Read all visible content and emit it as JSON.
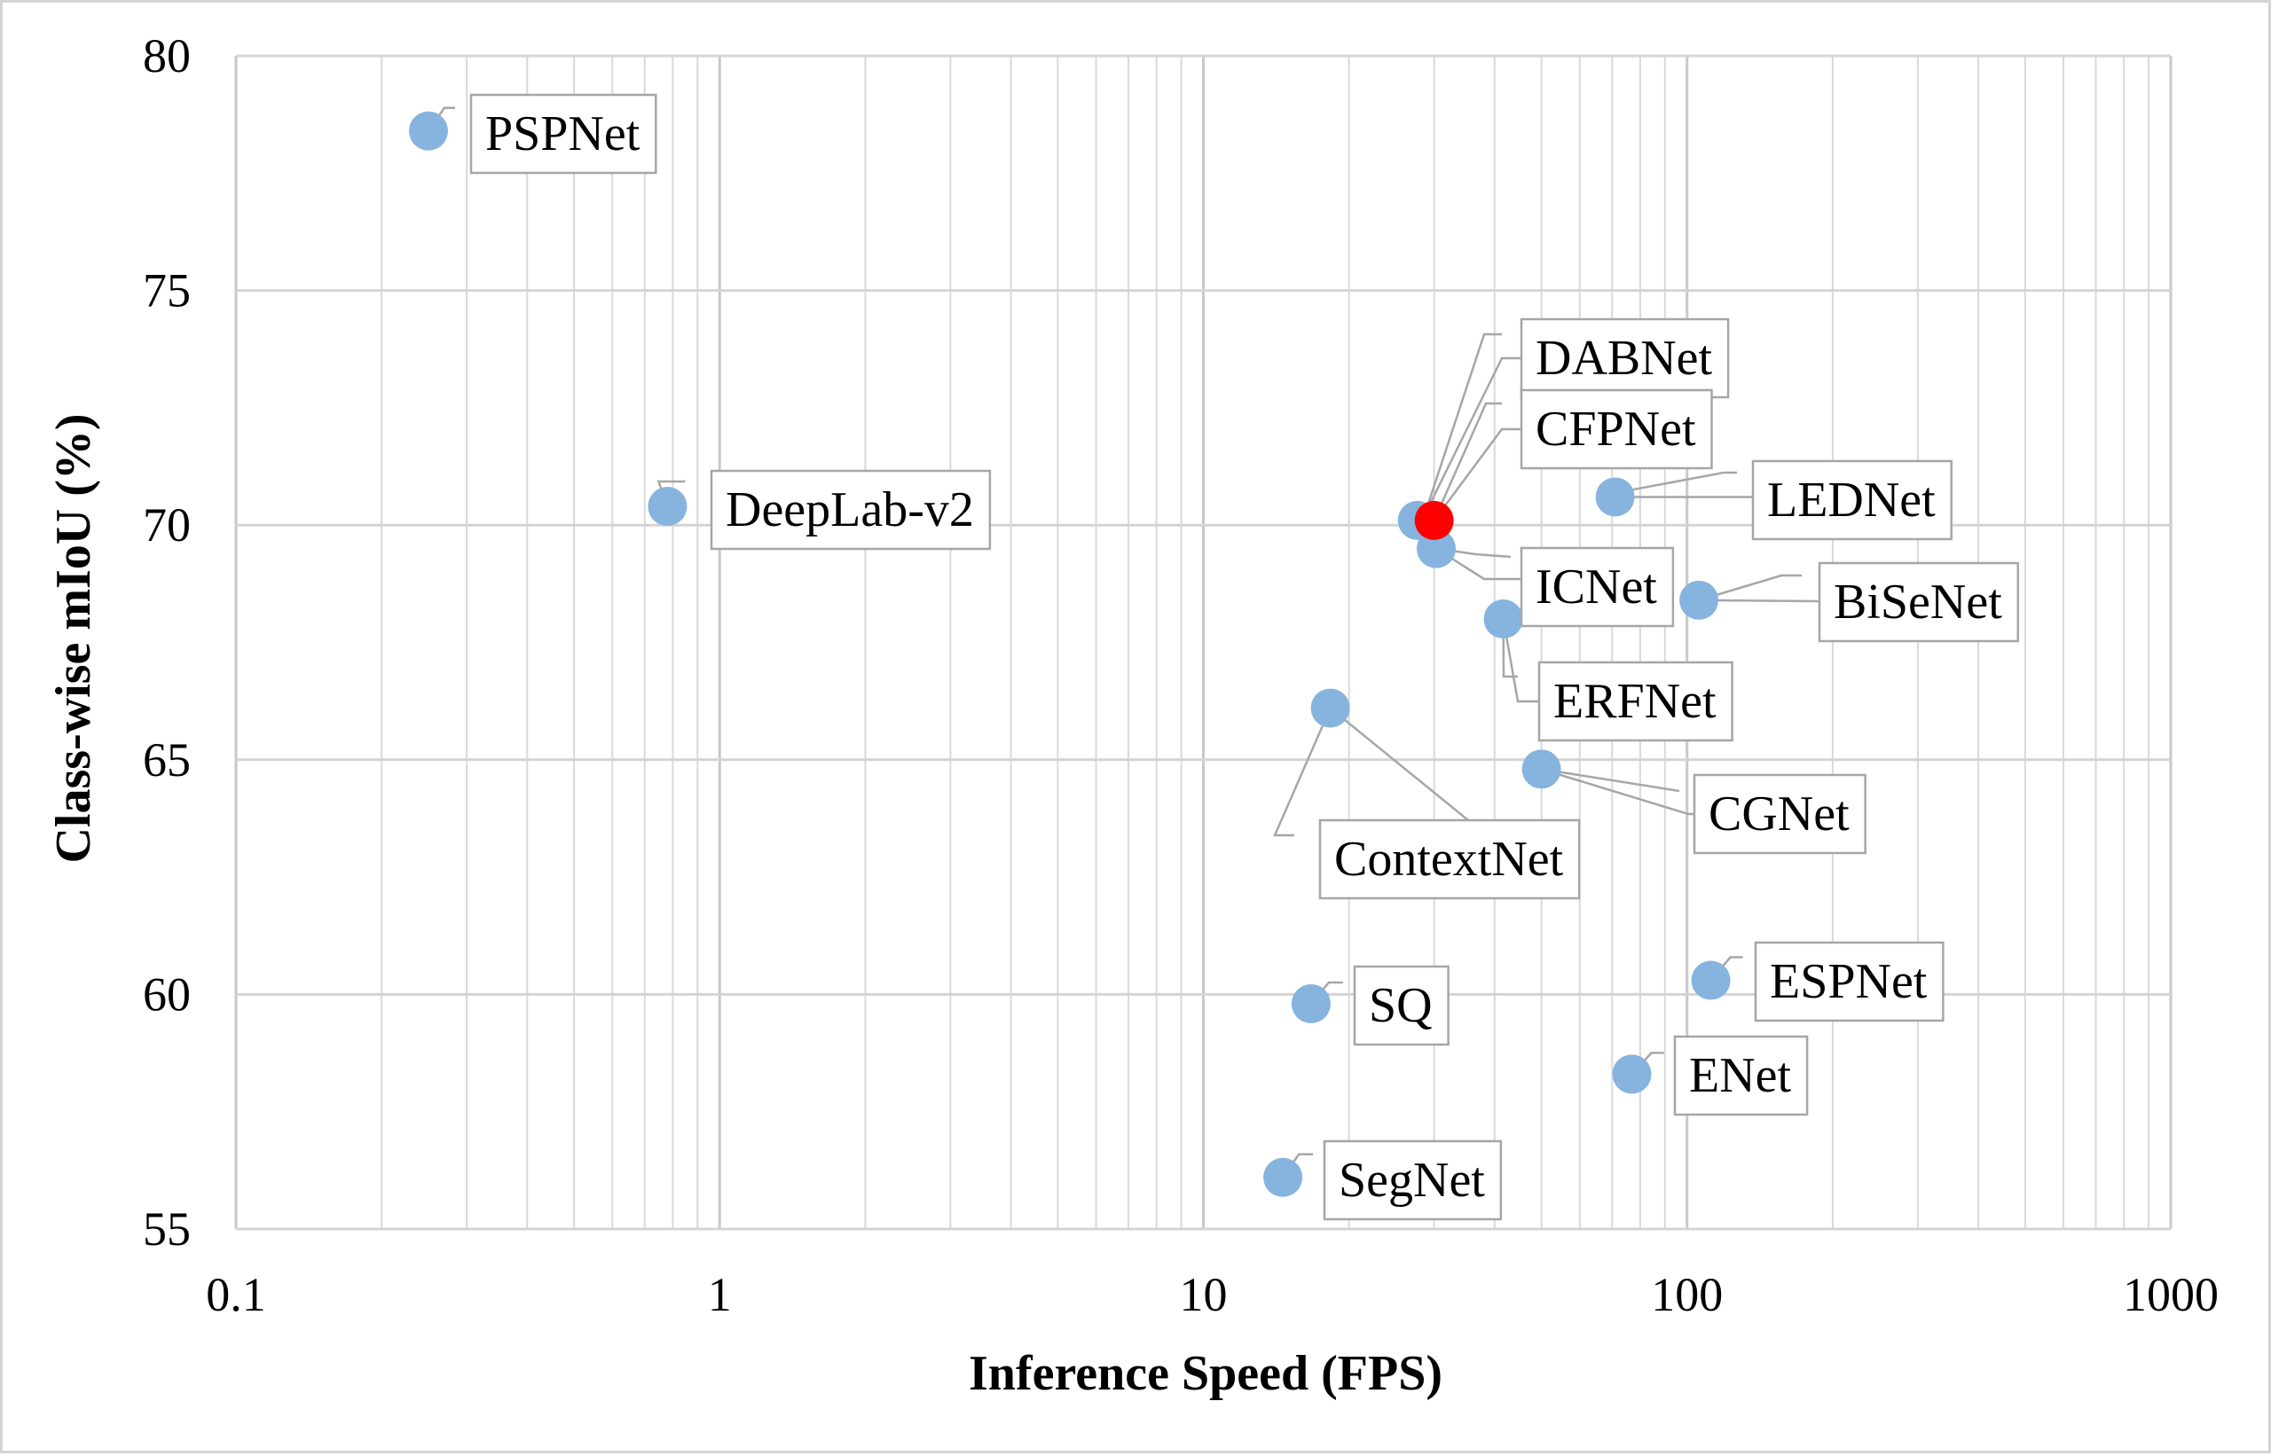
{
  "chart_data": {
    "type": "scatter",
    "xlabel": "Inference Speed (FPS)",
    "ylabel": "Class-wise mIoU (%)",
    "x_scale": "log",
    "xlim": [
      0.1,
      1000
    ],
    "ylim": [
      55,
      80
    ],
    "x_ticks": [
      0.1,
      1,
      10,
      100,
      1000
    ],
    "x_tick_labels": [
      "0.1",
      "1",
      "10",
      "100",
      "1000"
    ],
    "y_ticks": [
      55,
      60,
      65,
      70,
      75,
      80
    ],
    "y_tick_labels": [
      "55",
      "60",
      "65",
      "70",
      "75",
      "80"
    ],
    "grid": true,
    "colors": {
      "point": "#86b4de",
      "highlight": "#ff0000",
      "grid": "#d9d9d9",
      "leader": "#a6a6a6",
      "label_border": "#a6a6a6"
    },
    "points": [
      {
        "label": "PSPNet",
        "x": 0.25,
        "y": 78.4,
        "highlight": false
      },
      {
        "label": "DeepLab-v2",
        "x": 0.78,
        "y": 70.4,
        "highlight": false
      },
      {
        "label": "DABNet",
        "x": 27.7,
        "y": 70.1,
        "highlight": false
      },
      {
        "label": "CFPNet",
        "x": 30.0,
        "y": 70.1,
        "highlight": true
      },
      {
        "label": "LEDNet",
        "x": 71.0,
        "y": 70.6,
        "highlight": false
      },
      {
        "label": "ICNet",
        "x": 30.3,
        "y": 69.5,
        "highlight": false
      },
      {
        "label": "BiSeNet",
        "x": 105.8,
        "y": 68.4,
        "highlight": false
      },
      {
        "label": "ERFNet",
        "x": 41.7,
        "y": 68.0,
        "highlight": false
      },
      {
        "label": "ContextNet",
        "x": 18.3,
        "y": 66.1,
        "highlight": false
      },
      {
        "label": "CGNet",
        "x": 50.0,
        "y": 64.8,
        "highlight": false
      },
      {
        "label": "ESPNet",
        "x": 112.0,
        "y": 60.3,
        "highlight": false
      },
      {
        "label": "SQ",
        "x": 16.7,
        "y": 59.8,
        "highlight": false
      },
      {
        "label": "ENet",
        "x": 76.9,
        "y": 58.3,
        "highlight": false
      },
      {
        "label": "SegNet",
        "x": 14.6,
        "y": 56.1,
        "highlight": false
      }
    ]
  }
}
